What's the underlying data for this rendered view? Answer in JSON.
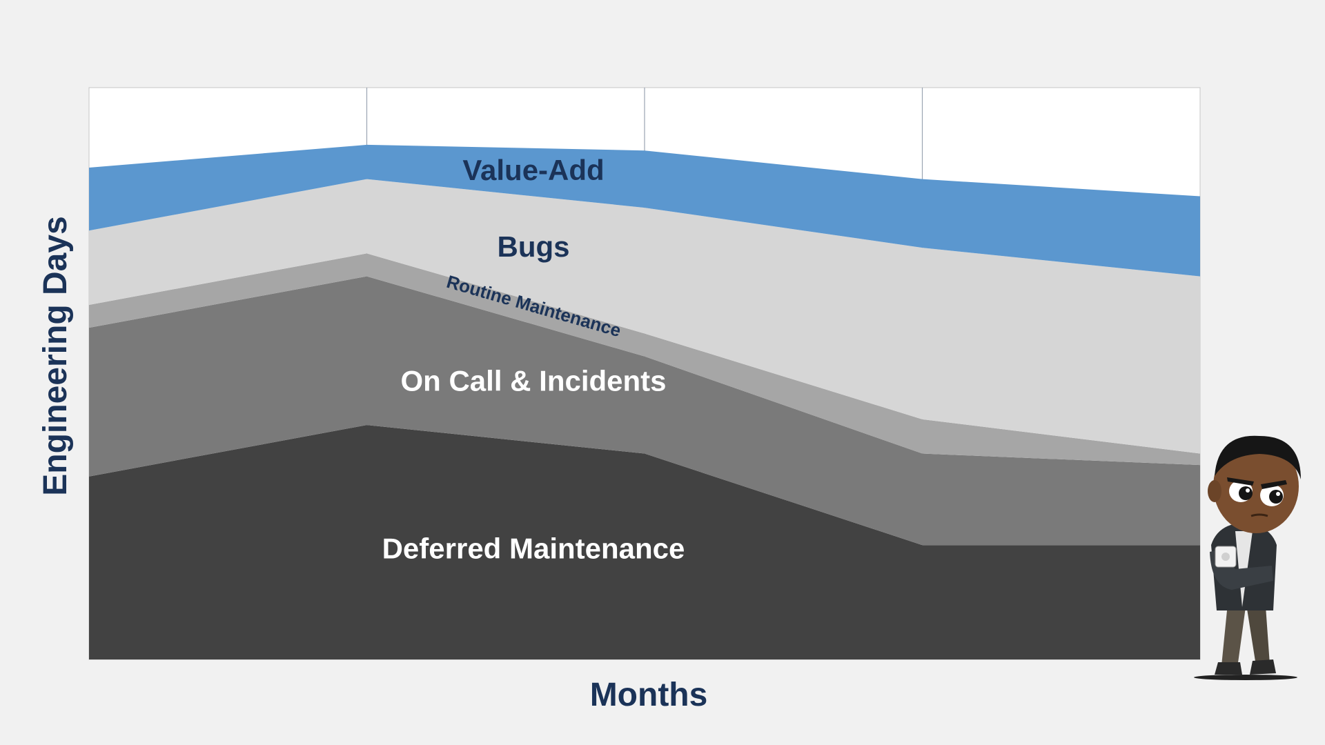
{
  "chart_data": {
    "type": "area",
    "stacked": true,
    "title": "",
    "xlabel": "Months",
    "ylabel": "Engineering Days",
    "x": [
      0,
      1,
      2,
      3,
      4
    ],
    "ylim": [
      0,
      100
    ],
    "grid": {
      "vertical": true,
      "horizontal": false
    },
    "legend": "inline labels",
    "series": [
      {
        "name": "Deferred Maintenance",
        "values": [
          32,
          41,
          36,
          20,
          20
        ],
        "color": "#424242",
        "label_color": "#ffffff"
      },
      {
        "name": "On Call & Incidents",
        "values": [
          26,
          26,
          17,
          16,
          14
        ],
        "color": "#7a7a7a",
        "label_color": "#ffffff"
      },
      {
        "name": "Routine Maintenance",
        "values": [
          4,
          4,
          4,
          6,
          2
        ],
        "color": "#a6a6a6",
        "label_color": "#1b3358"
      },
      {
        "name": "Bugs",
        "values": [
          13,
          13,
          22,
          30,
          31
        ],
        "color": "#d6d6d6",
        "label_color": "#1b3358"
      },
      {
        "name": "Value-Add",
        "values": [
          11,
          6,
          10,
          12,
          14
        ],
        "color": "#5b97cf",
        "label_color": "#1b3358"
      }
    ]
  },
  "mascot": {
    "icon": "thinking-character-with-mug-icon"
  }
}
